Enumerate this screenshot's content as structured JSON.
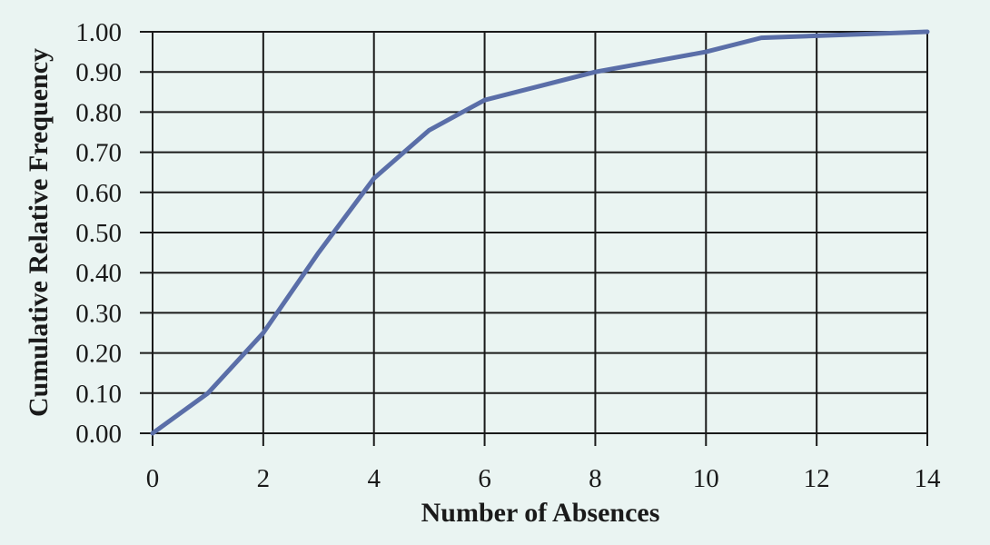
{
  "colors": {
    "background": "#eaf4f2",
    "line": "#5a6ea8",
    "grid": "#1a1a1a",
    "text": "#1a1a1a"
  },
  "chart_data": {
    "type": "line",
    "title": "",
    "xlabel": "Number of Absences",
    "ylabel": "Cumulative Relative Frequency",
    "xlim": [
      0,
      14
    ],
    "ylim": [
      0,
      1
    ],
    "x_ticks": [
      0,
      2,
      4,
      6,
      8,
      10,
      12,
      14
    ],
    "x_tick_labels": [
      "0",
      "2",
      "4",
      "6",
      "8",
      "10",
      "12",
      "14"
    ],
    "y_ticks": [
      0,
      0.1,
      0.2,
      0.3,
      0.4,
      0.5,
      0.6,
      0.7,
      0.8,
      0.9,
      1.0
    ],
    "y_tick_labels": [
      "0.00",
      "0.10",
      "0.20",
      "0.30",
      "0.40",
      "0.50",
      "0.60",
      "0.70",
      "0.80",
      "0.90",
      "1.00"
    ],
    "grid": true,
    "legend": "none",
    "series": [
      {
        "x": [
          0,
          1,
          2,
          3,
          4,
          5,
          6,
          7,
          8,
          9,
          10,
          11,
          12,
          13,
          14
        ],
        "values": [
          0.0,
          0.1,
          0.25,
          0.45,
          0.635,
          0.755,
          0.83,
          0.865,
          0.9,
          0.925,
          0.95,
          0.985,
          0.99,
          0.995,
          1.0
        ]
      }
    ]
  }
}
